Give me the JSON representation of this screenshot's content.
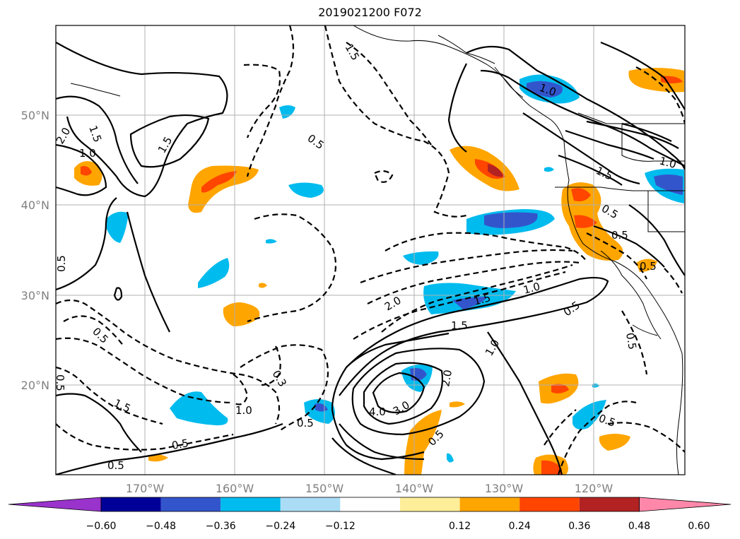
{
  "title": "2019021200 F072",
  "axes": {
    "lat_labels": [
      "50°N",
      "40°N",
      "30°N",
      "20°N"
    ],
    "lon_labels": [
      "170°W",
      "160°W",
      "150°W",
      "140°W",
      "130°W",
      "120°W"
    ]
  },
  "colorbar": {
    "labels": [
      "−0.60",
      "−0.48",
      "−0.36",
      "−0.24",
      "−0.12",
      "0.12",
      "0.24",
      "0.36",
      "0.48",
      "0.60"
    ],
    "colors": [
      "#9933cc",
      "#000099",
      "#3355cc",
      "#00bbee",
      "#aaddf5",
      "#ffffff",
      "#ffee99",
      "#ffa500",
      "#ff4500",
      "#b22222",
      "#ff88aa"
    ]
  },
  "contour_labels": [
    "1.5",
    "1.5",
    "2.0",
    "1.0",
    "1.5",
    "0.5",
    "0.5",
    "1.0",
    "1.0",
    "0.5",
    "0.5",
    "1.5",
    "0.5",
    "2.0",
    "1.5",
    "1.0",
    "0.5",
    "1.0",
    "1.5",
    "2.0",
    "4.0",
    "3.0",
    "0.5",
    "0.5",
    "0.3",
    "1.0",
    "1.5",
    "0.5",
    "0.5",
    "0.5",
    "0.5",
    "0.5",
    "0.5"
  ]
}
